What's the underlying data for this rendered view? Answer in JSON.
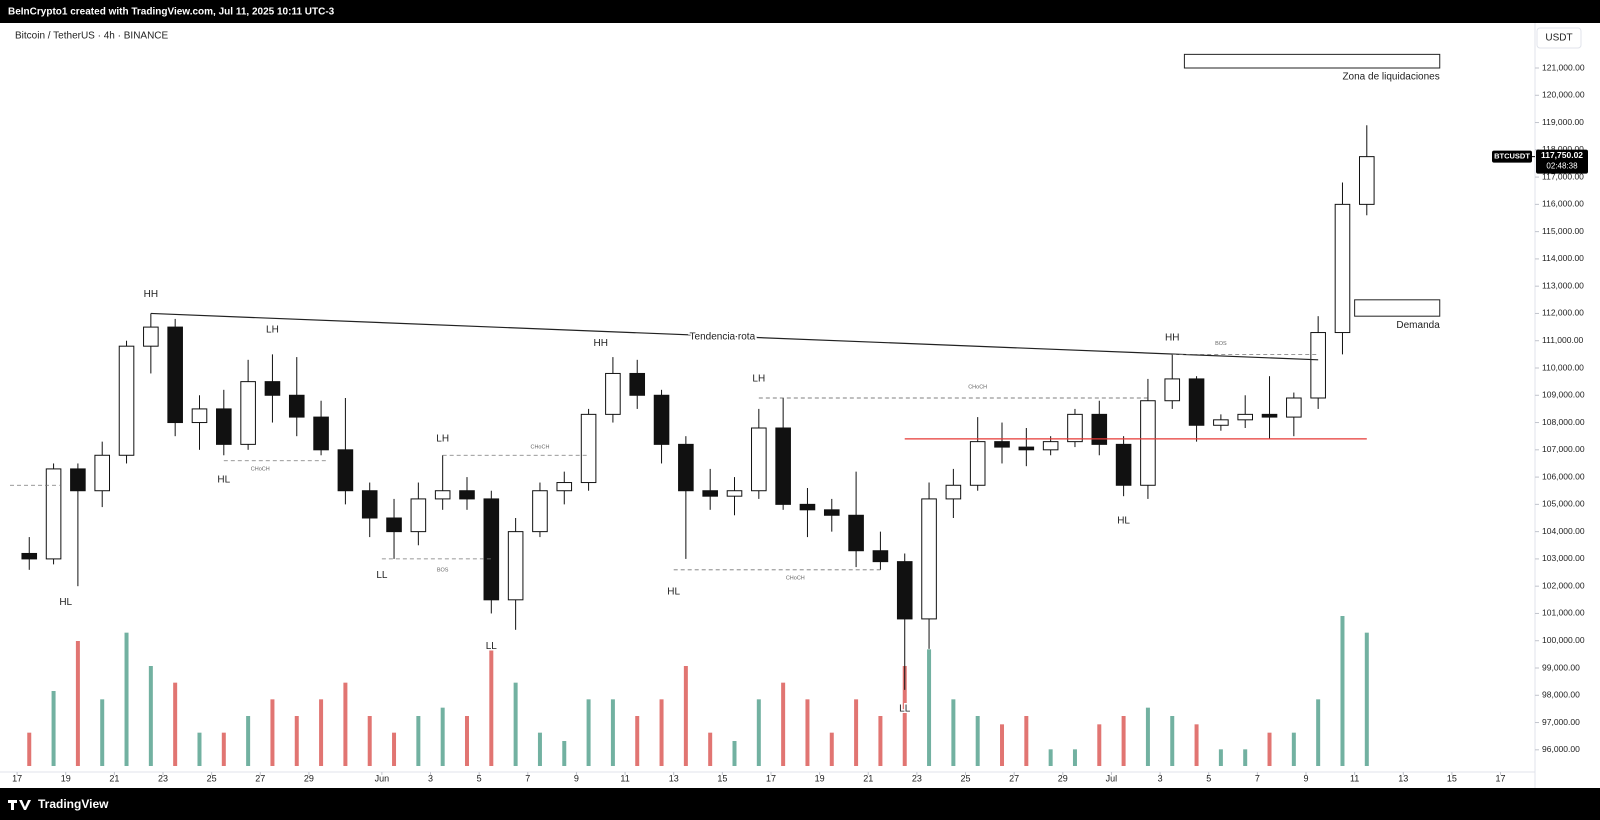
{
  "header": {
    "credit": "BeInCrypto1 created with TradingView.com, Jul 11, 2025 10:11 UTC-3"
  },
  "footer": {
    "brand": "TradingView"
  },
  "chart_data": {
    "type": "candlestick",
    "title": "Bitcoin / TetherUS · 4h · BINANCE",
    "currency": "USDT",
    "symbol": "BTCUSDT",
    "last_price": 117750.02,
    "last_price_label": "117,750.02",
    "countdown": "02:48:38",
    "xlim": [
      "2025-05-16T17:00",
      "2025-07-18T10:00"
    ],
    "ylim": [
      94600,
      122650
    ],
    "up_color": "#ffffff",
    "down_color": "#111111",
    "volume_up_color": "#4f9e8a",
    "volume_down_color": "#d9534f",
    "x": [
      "2025-05-17",
      "2025-05-18",
      "2025-05-19",
      "2025-05-20",
      "2025-05-21",
      "2025-05-22",
      "2025-05-23",
      "2025-05-24",
      "2025-05-25",
      "2025-05-26",
      "2025-05-27",
      "2025-05-28",
      "2025-05-29",
      "2025-05-30",
      "2025-05-31",
      "2025-06-01",
      "2025-06-02",
      "2025-06-03",
      "2025-06-04",
      "2025-06-05",
      "2025-06-06",
      "2025-06-07",
      "2025-06-08",
      "2025-06-09",
      "2025-06-10",
      "2025-06-11",
      "2025-06-12",
      "2025-06-13",
      "2025-06-14",
      "2025-06-15",
      "2025-06-16",
      "2025-06-17",
      "2025-06-18",
      "2025-06-19",
      "2025-06-20",
      "2025-06-21",
      "2025-06-22",
      "2025-06-23",
      "2025-06-24",
      "2025-06-25",
      "2025-06-26",
      "2025-06-27",
      "2025-06-28",
      "2025-06-29",
      "2025-06-30",
      "2025-07-01",
      "2025-07-02",
      "2025-07-03",
      "2025-07-04",
      "2025-07-05",
      "2025-07-06",
      "2025-07-07",
      "2025-07-08",
      "2025-07-09",
      "2025-07-10",
      "2025-07-11"
    ],
    "open": [
      103200,
      103000,
      106300,
      105500,
      106800,
      110800,
      111500,
      108000,
      108500,
      107200,
      109500,
      109000,
      108200,
      107000,
      105500,
      104500,
      104000,
      105200,
      105500,
      105200,
      101500,
      104000,
      105500,
      105800,
      108300,
      109800,
      109000,
      107200,
      105500,
      105300,
      105500,
      107800,
      105000,
      104800,
      104600,
      103300,
      102900,
      100800,
      105200,
      105700,
      107300,
      107100,
      107000,
      107300,
      108300,
      107200,
      105700,
      108800,
      109600,
      107900,
      108100,
      108300,
      108200,
      108900,
      111300,
      116000
    ],
    "high": [
      103800,
      106500,
      106500,
      107300,
      111000,
      112000,
      111800,
      109000,
      109200,
      110300,
      110500,
      110400,
      108800,
      108900,
      105800,
      105200,
      105800,
      106800,
      106000,
      105500,
      104500,
      105800,
      106200,
      108500,
      110400,
      110300,
      109200,
      107500,
      106300,
      106000,
      108500,
      108900,
      105600,
      105200,
      106200,
      104000,
      103200,
      105800,
      106300,
      108200,
      108000,
      107800,
      107500,
      108500,
      108800,
      107500,
      109600,
      110500,
      109700,
      108300,
      109000,
      109700,
      109100,
      111900,
      116800,
      118900
    ],
    "low": [
      102600,
      102800,
      102000,
      104900,
      106500,
      109800,
      107500,
      107000,
      106800,
      107000,
      108000,
      107500,
      106800,
      105000,
      103800,
      103000,
      103500,
      104800,
      104800,
      101000,
      100400,
      103800,
      105000,
      105500,
      108000,
      108500,
      106500,
      103000,
      104800,
      104600,
      105200,
      104800,
      103800,
      104000,
      102700,
      102600,
      98200,
      99700,
      104500,
      105500,
      106500,
      106400,
      106800,
      107100,
      106800,
      105300,
      105200,
      108500,
      107300,
      107700,
      107800,
      107400,
      107500,
      108500,
      110500,
      115600
    ],
    "close": [
      103000,
      106300,
      105500,
      106800,
      110800,
      111500,
      108000,
      108500,
      107200,
      109500,
      109000,
      108200,
      107000,
      105500,
      104500,
      104000,
      105200,
      105500,
      105200,
      101500,
      104000,
      105500,
      105800,
      108300,
      109800,
      109000,
      107200,
      105500,
      105300,
      105500,
      107800,
      105000,
      104800,
      104600,
      103300,
      102900,
      100800,
      105200,
      105700,
      107300,
      107100,
      107000,
      107300,
      108300,
      107200,
      105700,
      108800,
      109600,
      107900,
      108100,
      108300,
      108200,
      108900,
      111300,
      116000,
      117750.02
    ],
    "volume": [
      2000,
      4500,
      7500,
      4000,
      8000,
      6000,
      5000,
      2000,
      2000,
      3000,
      4000,
      3000,
      4000,
      5000,
      3000,
      2000,
      3000,
      3500,
      3000,
      7000,
      5000,
      2000,
      1500,
      4000,
      4000,
      3000,
      4000,
      6000,
      2000,
      1500,
      4000,
      5000,
      4000,
      2000,
      4000,
      3000,
      6000,
      7000,
      4000,
      3000,
      2500,
      3000,
      1000,
      1000,
      2500,
      3000,
      3500,
      3000,
      2500,
      1000,
      1000,
      2000,
      2000,
      4000,
      9000,
      8000
    ],
    "yticks": [
      {
        "value": 96000,
        "label": "96,000.00"
      },
      {
        "value": 97000,
        "label": "97,000.00"
      },
      {
        "value": 98000,
        "label": "98,000.00"
      },
      {
        "value": 99000,
        "label": "99,000.00"
      },
      {
        "value": 100000,
        "label": "100,000.00"
      },
      {
        "value": 101000,
        "label": "101,000.00"
      },
      {
        "value": 102000,
        "label": "102,000.00"
      },
      {
        "value": 103000,
        "label": "103,000.00"
      },
      {
        "value": 104000,
        "label": "104,000.00"
      },
      {
        "value": 105000,
        "label": "105,000.00"
      },
      {
        "value": 106000,
        "label": "106,000.00"
      },
      {
        "value": 107000,
        "label": "107,000.00"
      },
      {
        "value": 108000,
        "label": "108,000.00"
      },
      {
        "value": 109000,
        "label": "109,000.00"
      },
      {
        "value": 110000,
        "label": "110,000.00"
      },
      {
        "value": 111000,
        "label": "111,000.00"
      },
      {
        "value": 112000,
        "label": "112,000.00"
      },
      {
        "value": 113000,
        "label": "113,000.00"
      },
      {
        "value": 114000,
        "label": "114,000.00"
      },
      {
        "value": 115000,
        "label": "115,000.00"
      },
      {
        "value": 116000,
        "label": "116,000.00"
      },
      {
        "value": 117000,
        "label": "117,000.00"
      },
      {
        "value": 118000,
        "label": "118,000.00"
      },
      {
        "value": 119000,
        "label": "119,000.00"
      },
      {
        "value": 120000,
        "label": "120,000.00"
      },
      {
        "value": 121000,
        "label": "121,000.00"
      }
    ],
    "xticks": [
      {
        "value": "2025-05-17",
        "label": "17"
      },
      {
        "value": "2025-05-19",
        "label": "19"
      },
      {
        "value": "2025-05-21",
        "label": "21"
      },
      {
        "value": "2025-05-23",
        "label": "23"
      },
      {
        "value": "2025-05-25",
        "label": "25"
      },
      {
        "value": "2025-05-27",
        "label": "27"
      },
      {
        "value": "2025-05-29",
        "label": "29"
      },
      {
        "value": "2025-06-01",
        "label": "Jun"
      },
      {
        "value": "2025-06-03",
        "label": "3"
      },
      {
        "value": "2025-06-05",
        "label": "5"
      },
      {
        "value": "2025-06-07",
        "label": "7"
      },
      {
        "value": "2025-06-09",
        "label": "9"
      },
      {
        "value": "2025-06-11",
        "label": "11"
      },
      {
        "value": "2025-06-13",
        "label": "13"
      },
      {
        "value": "2025-06-15",
        "label": "15"
      },
      {
        "value": "2025-06-17",
        "label": "17"
      },
      {
        "value": "2025-06-19",
        "label": "19"
      },
      {
        "value": "2025-06-21",
        "label": "21"
      },
      {
        "value": "2025-06-23",
        "label": "23"
      },
      {
        "value": "2025-06-25",
        "label": "25"
      },
      {
        "value": "2025-06-27",
        "label": "27"
      },
      {
        "value": "2025-06-29",
        "label": "29"
      },
      {
        "value": "2025-07-01",
        "label": "Jul"
      },
      {
        "value": "2025-07-03",
        "label": "3"
      },
      {
        "value": "2025-07-05",
        "label": "5"
      },
      {
        "value": "2025-07-07",
        "label": "7"
      },
      {
        "value": "2025-07-09",
        "label": "9"
      },
      {
        "value": "2025-07-11",
        "label": "11"
      },
      {
        "value": "2025-07-13",
        "label": "13"
      },
      {
        "value": "2025-07-15",
        "label": "15"
      },
      {
        "value": "2025-07-17",
        "label": "17"
      }
    ],
    "annotations": [
      {
        "text": "HH",
        "x": "2025-05-22T12:00",
        "y": 112700
      },
      {
        "text": "LH",
        "x": "2025-05-27T12:00",
        "y": 111400
      },
      {
        "text": "HL",
        "x": "2025-05-25T12:00",
        "y": 105900
      },
      {
        "text": "HL",
        "x": "2025-05-19T00:00",
        "y": 101400
      },
      {
        "text": "LL",
        "x": "2025-06-01T00:00",
        "y": 102400
      },
      {
        "text": "LH",
        "x": "2025-06-03T12:00",
        "y": 107400
      },
      {
        "text": "LL",
        "x": "2025-06-05T12:00",
        "y": 99800
      },
      {
        "text": "HH",
        "x": "2025-06-10T00:00",
        "y": 110900
      },
      {
        "text": "HL",
        "x": "2025-06-13T00:00",
        "y": 101800
      },
      {
        "text": "LH",
        "x": "2025-06-16T12:00",
        "y": 109600
      },
      {
        "text": "LL",
        "x": "2025-06-22T12:00",
        "y": 97500
      },
      {
        "text": "HL",
        "x": "2025-07-01T12:00",
        "y": 104400
      },
      {
        "text": "HH",
        "x": "2025-07-03T12:00",
        "y": 111100
      },
      {
        "text": "Tendencia rota",
        "x": "2025-06-15T00:00",
        "y": 111150
      }
    ],
    "tags": [
      {
        "text": "CHoCH",
        "x": "2025-05-27T00:00",
        "y": 106300
      },
      {
        "text": "BOS",
        "x": "2025-06-03T12:00",
        "y": 102600
      },
      {
        "text": "CHoCH",
        "x": "2025-06-07T12:00",
        "y": 107100
      },
      {
        "text": "CHoCH",
        "x": "2025-06-18T00:00",
        "y": 102300
      },
      {
        "text": "CHoCH",
        "x": "2025-06-25T12:00",
        "y": 109300
      },
      {
        "text": "BOS",
        "x": "2025-07-05T12:00",
        "y": 110900
      }
    ],
    "lines": [
      {
        "x": [
          "2025-05-22T12:00",
          "2025-07-09T12:00"
        ],
        "y": [
          112000,
          110300
        ],
        "dashed": false,
        "color": "#222222"
      },
      {
        "x": [
          "2025-05-25T12:00",
          "2025-05-29T18:00"
        ],
        "y": [
          106600,
          106600
        ],
        "dashed": true,
        "color": "#777777"
      },
      {
        "x": [
          "2025-06-01T00:00",
          "2025-06-05T12:00"
        ],
        "y": [
          103000,
          103000
        ],
        "dashed": true,
        "color": "#777777"
      },
      {
        "x": [
          "2025-06-03T12:00",
          "2025-06-09T12:00"
        ],
        "y": [
          106800,
          106800
        ],
        "dashed": true,
        "color": "#777777"
      },
      {
        "x": [
          "2025-06-13T00:00",
          "2025-06-21T12:00"
        ],
        "y": [
          102600,
          102600
        ],
        "dashed": true,
        "color": "#777777"
      },
      {
        "x": [
          "2025-06-16T12:00",
          "2025-07-02T12:00"
        ],
        "y": [
          108900,
          108900
        ],
        "dashed": true,
        "color": "#555555"
      },
      {
        "x": [
          "2025-07-03T12:00",
          "2025-07-09T12:00"
        ],
        "y": [
          110500,
          110500
        ],
        "dashed": true,
        "color": "#777777"
      },
      {
        "x": [
          "2025-05-16T17:00",
          "2025-05-18T18:00"
        ],
        "y": [
          105700,
          105700
        ],
        "dashed": true,
        "color": "#777777"
      },
      {
        "x": [
          "2025-06-22T12:00",
          "2025-07-11T12:00"
        ],
        "y": [
          107400,
          107400
        ],
        "dashed": false,
        "color": "#e53935"
      }
    ],
    "zones": [
      {
        "text": "Zona de liquidaciones",
        "x": [
          "2025-07-04T00:00",
          "2025-07-14T12:00"
        ],
        "y": [
          121000,
          121500
        ]
      },
      {
        "text": "Demanda",
        "x": [
          "2025-07-11T00:00",
          "2025-07-14T12:00"
        ],
        "y": [
          111900,
          112500
        ]
      }
    ]
  }
}
